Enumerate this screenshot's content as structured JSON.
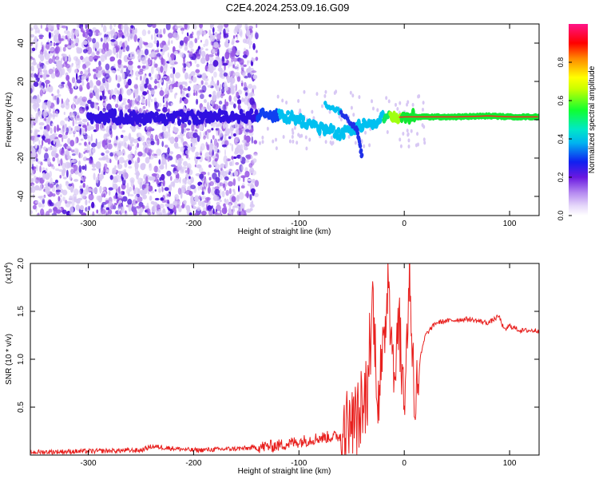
{
  "page": {
    "title": "C2E4.2024.253.09.16.G09"
  },
  "colors": {
    "background": "#ffffff",
    "snr_line": "#e8201e",
    "dot_low": "#d8c8f4",
    "dot_mid": "#9a5ae6",
    "dot_high": "#4a10d8"
  },
  "chart_data": [
    {
      "type": "heatmap",
      "title": "C2E4.2024.253.09.16.G09",
      "xlabel": "Height of straight line (km)",
      "ylabel": "Frequency (Hz)",
      "xlim": [
        -355,
        128
      ],
      "ylim": [
        -50,
        50
      ],
      "xticks": [
        -300,
        -200,
        -100,
        0,
        100
      ],
      "yticks": [
        -40,
        -20,
        0,
        20,
        40
      ],
      "colorbar": {
        "label": "Normalized spectral amplitude",
        "range": [
          0,
          1
        ],
        "ticks": [
          0.0,
          0.2,
          0.4,
          0.6,
          0.8
        ],
        "tick_labels": [
          "0.0",
          "0.2",
          "0.4",
          "0.6",
          "0.8"
        ],
        "colormap": "rainbow (white-violet-blue-cyan-green-yellow-red-magenta)"
      },
      "scattered_signal_region_x": [
        -355,
        -140
      ],
      "signal_track": [
        {
          "x": -300,
          "f": 1.5,
          "amp": 0.25
        },
        {
          "x": -250,
          "f": 1.0,
          "amp": 0.2
        },
        {
          "x": -200,
          "f": 1.0,
          "amp": 0.2
        },
        {
          "x": -150,
          "f": 2.0,
          "amp": 0.25
        },
        {
          "x": -120,
          "f": 3.0,
          "amp": 0.4
        },
        {
          "x": -100,
          "f": 0.0,
          "amp": 0.45
        },
        {
          "x": -80,
          "f": -4.0,
          "amp": 0.45
        },
        {
          "x": -60,
          "f": -8.0,
          "amp": 0.4
        },
        {
          "x": -40,
          "f": -3.0,
          "amp": 0.45
        },
        {
          "x": -20,
          "f": 1.0,
          "amp": 0.5
        },
        {
          "x": 0,
          "f": 1.5,
          "amp": 0.8
        },
        {
          "x": 20,
          "f": 1.5,
          "amp": 0.85
        },
        {
          "x": 50,
          "f": 1.5,
          "amp": 0.85
        },
        {
          "x": 80,
          "f": 2.0,
          "amp": 0.9
        },
        {
          "x": 100,
          "f": 1.5,
          "amp": 0.85
        },
        {
          "x": 128,
          "f": 1.5,
          "amp": 0.85
        }
      ],
      "secondary_branch": [
        {
          "x": -75,
          "f": 8.0
        },
        {
          "x": -60,
          "f": 4.0
        },
        {
          "x": -45,
          "f": -5.0
        },
        {
          "x": -40,
          "f": -20.0
        }
      ]
    },
    {
      "type": "line",
      "xlabel": "Height of straight line (km)",
      "ylabel": "SNR (10 * v/v)",
      "scale_label": "(x10",
      "scale_exponent": "4",
      "xlim": [
        -355,
        128
      ],
      "ylim": [
        0,
        2.0
      ],
      "xticks": [
        -300,
        -200,
        -100,
        0,
        100
      ],
      "yticks": [
        0.5,
        1.0,
        1.5,
        2.0
      ],
      "ytick_labels": [
        "0.5",
        "1.0",
        "1.5",
        "2.0"
      ],
      "series": [
        {
          "x": [
            -355,
            -300,
            -250,
            -240,
            -200,
            -150,
            -120,
            -100,
            -80,
            -60,
            -50,
            -40,
            -35,
            -30,
            -25,
            -20,
            -15,
            -10,
            -5,
            0,
            5,
            10,
            15,
            20,
            30,
            40,
            60,
            80,
            90,
            95,
            100,
            110,
            128
          ],
          "y": [
            0.03,
            0.04,
            0.05,
            0.09,
            0.05,
            0.07,
            0.1,
            0.14,
            0.18,
            0.2,
            0.35,
            0.4,
            0.7,
            1.6,
            0.6,
            1.0,
            2.0,
            0.8,
            1.4,
            0.5,
            1.88,
            0.5,
            1.0,
            1.25,
            1.38,
            1.4,
            1.42,
            1.38,
            1.45,
            1.3,
            1.35,
            1.3,
            1.3
          ]
        }
      ]
    }
  ]
}
